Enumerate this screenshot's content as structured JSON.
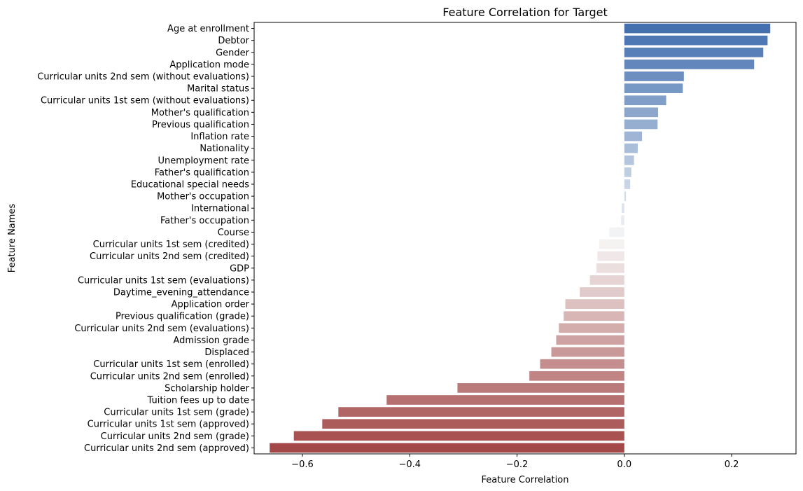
{
  "chart_data": {
    "type": "bar",
    "orientation": "horizontal",
    "title": "Feature Correlation for Target",
    "xlabel": "Feature Correlation",
    "ylabel": "Feature Names",
    "xlim": [
      -0.69,
      0.32
    ],
    "xticks": [
      -0.6,
      -0.4,
      -0.2,
      0.0,
      0.2
    ],
    "xtick_labels": [
      "−0.6",
      "−0.4",
      "−0.2",
      "0.0",
      "0.2"
    ],
    "grid": false,
    "palette": {
      "positive_end": "#4470b0",
      "mid": "#f7f7f7",
      "negative_end": "#a34848"
    },
    "categories": [
      "Age at enrollment",
      "Debtor",
      "Gender",
      "Application mode",
      "Curricular units 2nd sem (without evaluations)",
      "Marital status",
      "Curricular units 1st sem (without evaluations)",
      "Mother's qualification",
      "Previous qualification",
      "Inflation rate",
      "Nationality",
      "Unemployment rate",
      "Father's qualification",
      "Educational special needs",
      "Mother's occupation",
      "International",
      "Father's occupation",
      "Course",
      "Curricular units 1st sem (credited)",
      "Curricular units 2nd sem (credited)",
      "GDP",
      "Curricular units 1st sem (evaluations)",
      "Daytime_evening_attendance",
      "Application order",
      "Previous qualification (grade)",
      "Curricular units 2nd sem (evaluations)",
      "Admission grade",
      "Displaced",
      "Curricular units 1st sem (enrolled)",
      "Curricular units 2nd sem (enrolled)",
      "Scholarship holder",
      "Tuition fees up to date",
      "Curricular units 1st sem (grade)",
      "Curricular units 1st sem (approved)",
      "Curricular units 2nd sem (grade)",
      "Curricular units 2nd sem (approved)"
    ],
    "values": [
      0.272,
      0.267,
      0.259,
      0.242,
      0.111,
      0.109,
      0.078,
      0.063,
      0.062,
      0.033,
      0.025,
      0.018,
      0.013,
      0.011,
      0.003,
      -0.005,
      -0.006,
      -0.028,
      -0.047,
      -0.05,
      -0.052,
      -0.064,
      -0.083,
      -0.11,
      -0.113,
      -0.122,
      -0.127,
      -0.136,
      -0.157,
      -0.177,
      -0.311,
      -0.443,
      -0.533,
      -0.563,
      -0.616,
      -0.661
    ]
  }
}
